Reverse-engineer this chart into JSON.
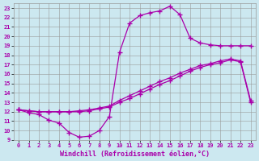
{
  "xlabel": "Windchill (Refroidissement éolien,°C)",
  "bg_color": "#cce8f0",
  "line_color": "#aa00aa",
  "grid_color": "#999999",
  "xlim": [
    -0.5,
    23.5
  ],
  "ylim": [
    9,
    23.5
  ],
  "xticks": [
    0,
    1,
    2,
    3,
    4,
    5,
    6,
    7,
    8,
    9,
    10,
    11,
    12,
    13,
    14,
    15,
    16,
    17,
    18,
    19,
    20,
    21,
    22,
    23
  ],
  "yticks": [
    9,
    10,
    11,
    12,
    13,
    14,
    15,
    16,
    17,
    18,
    19,
    20,
    21,
    22,
    23
  ],
  "line1_x": [
    0,
    1,
    2,
    3,
    4,
    5,
    6,
    7,
    8,
    9,
    10,
    11,
    12,
    13,
    14,
    15,
    16,
    17,
    18,
    19,
    20,
    21,
    22,
    23
  ],
  "line1_y": [
    12.2,
    11.9,
    11.7,
    11.1,
    10.8,
    9.8,
    9.3,
    9.4,
    10.0,
    11.5,
    18.3,
    21.4,
    22.2,
    22.5,
    22.7,
    23.2,
    22.3,
    19.8,
    19.3,
    19.1,
    19.0,
    19.0,
    19.0,
    19.0
  ],
  "line2_x": [
    0,
    1,
    2,
    3,
    4,
    5,
    6,
    7,
    8,
    9,
    10,
    11,
    12,
    13,
    14,
    15,
    16,
    17,
    18,
    19,
    20,
    21,
    22,
    23
  ],
  "line2_y": [
    12.2,
    12.1,
    12.0,
    12.0,
    12.0,
    12.0,
    12.0,
    12.1,
    12.3,
    12.5,
    13.0,
    13.4,
    13.9,
    14.4,
    14.9,
    15.3,
    15.8,
    16.3,
    16.7,
    17.0,
    17.2,
    17.5,
    17.3,
    13.0
  ],
  "line3_x": [
    0,
    1,
    2,
    3,
    4,
    5,
    6,
    7,
    8,
    9,
    10,
    11,
    12,
    13,
    14,
    15,
    16,
    17,
    18,
    19,
    20,
    21,
    22,
    23
  ],
  "line3_y": [
    12.2,
    12.1,
    12.0,
    12.0,
    12.0,
    12.0,
    12.1,
    12.2,
    12.4,
    12.6,
    13.2,
    13.7,
    14.2,
    14.7,
    15.2,
    15.6,
    16.1,
    16.5,
    16.9,
    17.1,
    17.4,
    17.6,
    17.4,
    13.2
  ],
  "marker": "+",
  "markersize": 4,
  "linewidth": 0.9,
  "tick_fontsize": 5.0,
  "xlabel_fontsize": 6.0
}
